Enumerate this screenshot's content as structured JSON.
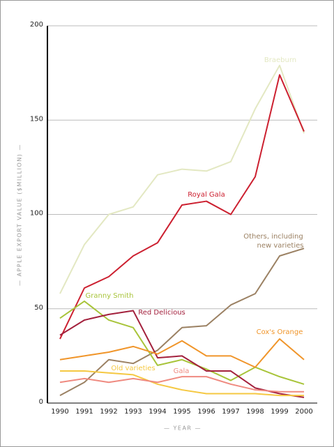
{
  "chart_data": {
    "type": "line",
    "x_label": "— YEAR —",
    "y_label": "— APPLE EXPORT VALUE ($MILLION) —",
    "categories": [
      "1990",
      "1991",
      "1992",
      "1993",
      "1994",
      "1995",
      "1996",
      "1997",
      "1998",
      "1999",
      "2000"
    ],
    "ylim": [
      0,
      200
    ],
    "yticks": [
      0,
      50,
      100,
      150,
      200
    ],
    "grid": true,
    "series": [
      {
        "name": "Braeburn",
        "color": "#e3e8c2",
        "values": [
          58,
          84,
          100,
          104,
          121,
          124,
          123,
          128,
          156,
          179,
          143
        ]
      },
      {
        "name": "Royal Gala",
        "color": "#cc2030",
        "values": [
          34,
          61,
          67,
          78,
          85,
          105,
          107,
          100,
          120,
          174,
          144
        ]
      },
      {
        "name": "Others, including new varieties",
        "color": "#9b8163",
        "values": [
          4,
          11,
          23,
          21,
          28,
          40,
          41,
          52,
          58,
          78,
          82
        ]
      },
      {
        "name": "Granny Smith",
        "color": "#a8c43a",
        "values": [
          45,
          54,
          44,
          40,
          20,
          23,
          18,
          12,
          19,
          14,
          10
        ]
      },
      {
        "name": "Red Delicious",
        "color": "#a3213d",
        "values": [
          36,
          44,
          47,
          49,
          24,
          25,
          17,
          17,
          8,
          5,
          3
        ]
      },
      {
        "name": "Cox's Orange",
        "color": "#f0952a",
        "values": [
          23,
          25,
          27,
          30,
          26,
          33,
          25,
          25,
          19,
          34,
          23
        ]
      },
      {
        "name": "Old varieties",
        "color": "#f5c842",
        "values": [
          17,
          17,
          16,
          15,
          10,
          7,
          5,
          5,
          5,
          4,
          4
        ]
      },
      {
        "name": "Gala",
        "color": "#ef8a80",
        "values": [
          11,
          13,
          11,
          13,
          11,
          14,
          14,
          10,
          7,
          6,
          6
        ]
      }
    ]
  }
}
